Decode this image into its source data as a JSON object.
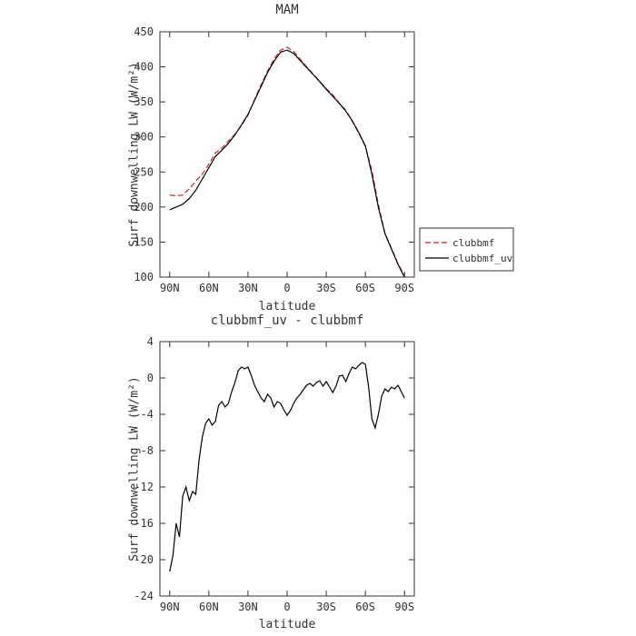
{
  "figure": {
    "background": "#ffffff"
  },
  "chart_data": [
    {
      "type": "line",
      "title": "MAM",
      "xlabel": "latitude",
      "ylabel": "Surf downwelling LW (W/m²)",
      "x_axis": {
        "min": 97.5,
        "max": -97.5,
        "ticks": [
          90,
          60,
          30,
          0,
          -30,
          -60,
          -90
        ],
        "tick_labels": [
          "90N",
          "60N",
          "30N",
          "0",
          "30S",
          "60S",
          "90S"
        ]
      },
      "y_axis": {
        "min": 100,
        "max": 450,
        "ticks": [
          100,
          150,
          200,
          250,
          300,
          350,
          400,
          450
        ]
      },
      "x": [
        90,
        85,
        80,
        75,
        70,
        65,
        60,
        55,
        50,
        45,
        40,
        35,
        30,
        25,
        20,
        15,
        10,
        5,
        0,
        -5,
        -10,
        -15,
        -20,
        -25,
        -30,
        -35,
        -40,
        -45,
        -50,
        -55,
        -60,
        -65,
        -70,
        -75,
        -80,
        -85,
        -90
      ],
      "series": [
        {
          "name": "clubbmf",
          "color": "#cc2222",
          "dash": "6,3",
          "values": [
            217,
            216,
            217,
            226,
            237,
            247,
            261,
            277,
            284,
            294,
            304,
            316,
            331,
            353,
            374,
            394,
            411,
            424,
            428,
            422,
            411,
            400,
            390,
            379,
            369,
            360,
            348,
            338,
            322,
            305,
            286,
            252,
            203,
            163,
            141,
            119,
            102
          ]
        },
        {
          "name": "clubbmf_uv",
          "color": "#000000",
          "dash": "",
          "values": [
            196,
            200,
            204,
            212,
            224,
            240,
            256,
            272,
            281,
            291,
            303,
            317,
            332,
            352,
            372,
            392,
            408,
            421,
            424,
            419,
            409,
            399,
            389,
            379,
            368,
            358,
            348,
            337,
            323,
            306,
            287,
            247,
            199,
            162,
            140,
            118,
            100
          ]
        }
      ],
      "legend": {
        "entries": [
          "clubbmf",
          "clubbmf_uv"
        ]
      }
    },
    {
      "type": "line",
      "title": "clubbmf_uv - clubbmf",
      "xlabel": "latitude",
      "ylabel": "Surf downwelling LW (W/m²)",
      "x_axis": {
        "min": 97.5,
        "max": -97.5,
        "ticks": [
          90,
          60,
          30,
          0,
          -30,
          -60,
          -90
        ],
        "tick_labels": [
          "90N",
          "60N",
          "30N",
          "0",
          "30S",
          "60S",
          "90S"
        ]
      },
      "y_axis": {
        "min": -24,
        "max": 4,
        "ticks": [
          -24,
          -20,
          -16,
          -12,
          -8,
          -4,
          0,
          4
        ]
      },
      "x": [
        90,
        87.5,
        85,
        82.5,
        80,
        77.5,
        75,
        72.5,
        70,
        67.5,
        65,
        62.5,
        60,
        57.5,
        55,
        52.5,
        50,
        47.5,
        45,
        42.5,
        40,
        37.5,
        35,
        32.5,
        30,
        27.5,
        25,
        22.5,
        20,
        17.5,
        15,
        12.5,
        10,
        7.5,
        5,
        2.5,
        0,
        -2.5,
        -5,
        -7.5,
        -10,
        -12.5,
        -15,
        -17.5,
        -20,
        -22.5,
        -25,
        -27.5,
        -30,
        -32.5,
        -35,
        -37.5,
        -40,
        -42.5,
        -45,
        -47.5,
        -50,
        -52.5,
        -55,
        -57.5,
        -60,
        -62.5,
        -65,
        -67.5,
        -70,
        -72.5,
        -75,
        -77.5,
        -80,
        -82.5,
        -85,
        -87.5,
        -90
      ],
      "series": [
        {
          "name": "clubbmf_uv - clubbmf",
          "color": "#000000",
          "dash": "",
          "values": [
            -21.3,
            -19.5,
            -16.0,
            -17.5,
            -13.0,
            -12.0,
            -13.5,
            -12.5,
            -12.8,
            -9.0,
            -6.5,
            -5.0,
            -4.5,
            -5.2,
            -4.8,
            -3.0,
            -2.6,
            -3.2,
            -2.8,
            -1.5,
            -0.5,
            0.8,
            1.2,
            1.0,
            1.2,
            0.3,
            -0.8,
            -1.5,
            -2.2,
            -2.6,
            -1.8,
            -2.2,
            -3.2,
            -2.6,
            -2.8,
            -3.5,
            -4.1,
            -3.6,
            -2.8,
            -2.2,
            -1.8,
            -1.3,
            -0.8,
            -0.6,
            -0.9,
            -0.5,
            -0.3,
            -0.9,
            -0.4,
            -1.0,
            -1.6,
            -0.9,
            0.2,
            0.3,
            -0.4,
            0.5,
            1.2,
            1.0,
            1.4,
            1.7,
            1.5,
            -1.0,
            -4.5,
            -5.5,
            -4.0,
            -2.0,
            -1.2,
            -1.5,
            -1.0,
            -1.2,
            -0.8,
            -1.5,
            -2.2
          ]
        }
      ]
    }
  ]
}
